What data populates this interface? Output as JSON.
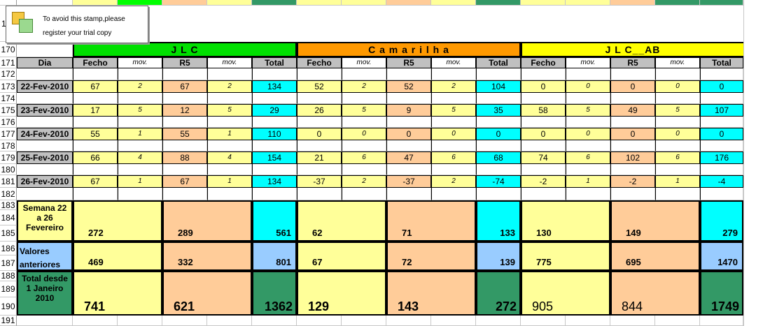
{
  "stamp": {
    "line1": "To avoid this stamp,please",
    "line2": "register your trial copy"
  },
  "top_partial_row": "1",
  "row_numbers": [
    "170",
    "171",
    "172",
    "173",
    "174",
    "175",
    "176",
    "177",
    "178",
    "179",
    "180",
    "181",
    "182",
    "183",
    "184",
    "185",
    "186",
    "187",
    "188",
    "189",
    "190",
    "191"
  ],
  "groups": [
    {
      "title": "J  L  C",
      "color": "#00e000"
    },
    {
      "title": "C a m a r i l h a",
      "color": "#ff9900"
    },
    {
      "title": "J L C__AB",
      "color": "#ffff00"
    }
  ],
  "headers": {
    "dia": "Dia",
    "fecho": "Fecho",
    "mov": "mov.",
    "r5": "R5",
    "total": "Total"
  },
  "days": [
    {
      "date": "22-Fev-2010",
      "values": [
        "67",
        "2",
        "67",
        "2",
        "134",
        "52",
        "2",
        "52",
        "2",
        "104",
        "0",
        "0",
        "0",
        "0",
        "0"
      ]
    },
    {
      "date": "23-Fev-2010",
      "values": [
        "17",
        "5",
        "12",
        "5",
        "29",
        "26",
        "5",
        "9",
        "5",
        "35",
        "58",
        "5",
        "49",
        "5",
        "107"
      ]
    },
    {
      "date": "24-Fev-2010",
      "values": [
        "55",
        "1",
        "55",
        "1",
        "110",
        "0",
        "0",
        "0",
        "0",
        "0",
        "0",
        "0",
        "0",
        "0",
        "0"
      ]
    },
    {
      "date": "25-Fev-2010",
      "values": [
        "66",
        "4",
        "88",
        "4",
        "154",
        "21",
        "6",
        "47",
        "6",
        "68",
        "74",
        "6",
        "102",
        "6",
        "176"
      ]
    },
    {
      "date": "26-Fev-2010",
      "values": [
        "67",
        "1",
        "67",
        "1",
        "134",
        "-37",
        "2",
        "-37",
        "2",
        "-74",
        "-2",
        "1",
        "-2",
        "1",
        "-4"
      ]
    }
  ],
  "summary": {
    "semana_label": "Semana 22 a 26 Fevereiro",
    "semana_values": [
      "272",
      "289",
      "561",
      "62",
      "71",
      "133",
      "130",
      "149",
      "279"
    ],
    "anteriores_label": "Valores anteriores",
    "anteriores_values": [
      "469",
      "332",
      "801",
      "67",
      "72",
      "139",
      "775",
      "695",
      "1470"
    ],
    "total_label": "Total desde 1 Janeiro 2010",
    "total_values": [
      "741",
      "621",
      "1362",
      "129",
      "143",
      "272",
      "905",
      "844",
      "1749"
    ]
  },
  "colors": {
    "yellow": "#ffff99",
    "peach": "#ffcc99",
    "cyan": "#00ffff",
    "header_grey": "#c0c0c0",
    "light_blue": "#99ccff",
    "dark_green": "#339966",
    "dia_grey": "#c0c0c0"
  }
}
